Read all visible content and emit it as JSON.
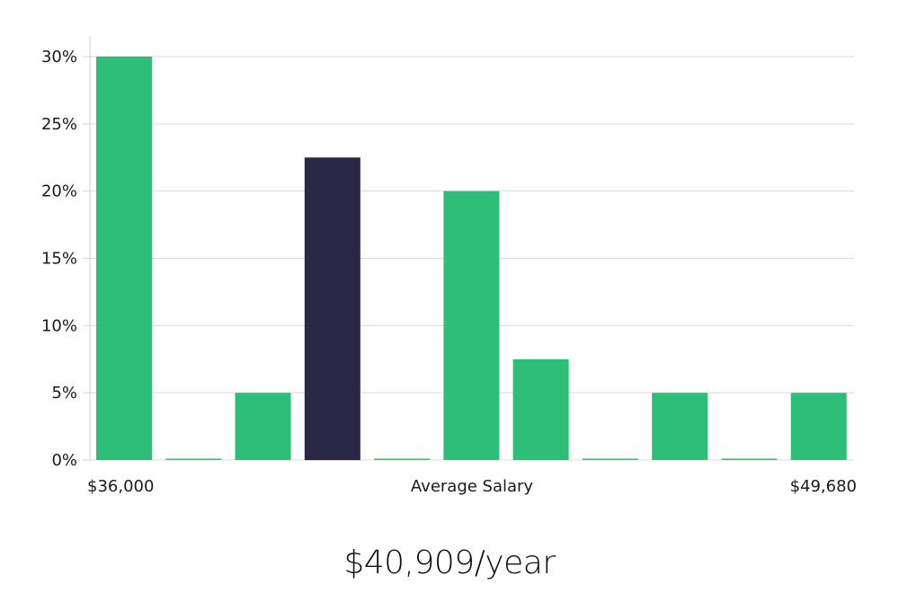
{
  "chart_data": {
    "type": "bar",
    "title": "",
    "xlabel": "Average Salary",
    "ylabel": "",
    "x_min_label": "$36,000",
    "x_max_label": "$49,680",
    "y_ticks": [
      "0%",
      "5%",
      "10%",
      "15%",
      "20%",
      "25%",
      "30%"
    ],
    "ylim": [
      0,
      30
    ],
    "values": [
      30,
      0,
      5,
      22.5,
      0,
      20,
      7.5,
      0,
      5,
      0,
      5
    ],
    "highlight_index": 3,
    "colors": {
      "bar": "#2bbf77",
      "highlight": "#292646",
      "grid": "#d9d9d9",
      "axis": "#cccccc"
    }
  },
  "summary": {
    "salary_text": "$40,909/year"
  }
}
